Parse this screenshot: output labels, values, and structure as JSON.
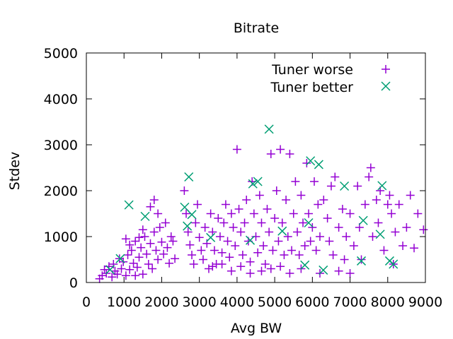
{
  "chart_data": {
    "type": "scatter",
    "title": "Bitrate",
    "xlabel": "Avg BW",
    "ylabel": "Stdev",
    "xlim": [
      0,
      9000
    ],
    "ylim": [
      0,
      5000
    ],
    "xticks": [
      "0",
      "1000",
      "2000",
      "3000",
      "4000",
      "5000",
      "6000",
      "7000",
      "8000",
      "9000"
    ],
    "yticks": [
      "0",
      "1000",
      "2000",
      "3000",
      "4000",
      "5000"
    ],
    "grid": false,
    "legend_position": "top-right",
    "series": [
      {
        "name": "Tuner worse",
        "marker": "plus",
        "color": "#9400d3",
        "points": [
          [
            350,
            80
          ],
          [
            420,
            150
          ],
          [
            480,
            280
          ],
          [
            530,
            200
          ],
          [
            600,
            350
          ],
          [
            680,
            120
          ],
          [
            720,
            400
          ],
          [
            760,
            250
          ],
          [
            820,
            180
          ],
          [
            880,
            520
          ],
          [
            930,
            300
          ],
          [
            980,
            450
          ],
          [
            1050,
            150
          ],
          [
            1100,
            600
          ],
          [
            1150,
            280
          ],
          [
            1200,
            700
          ],
          [
            1250,
            420
          ],
          [
            1300,
            900
          ],
          [
            1350,
            330
          ],
          [
            1400,
            550
          ],
          [
            1450,
            760
          ],
          [
            1500,
            180
          ],
          [
            1550,
            1000
          ],
          [
            1600,
            620
          ],
          [
            1650,
            400
          ],
          [
            1700,
            850
          ],
          [
            1750,
            300
          ],
          [
            1800,
            1100
          ],
          [
            1850,
            700
          ],
          [
            1900,
            500
          ],
          [
            1950,
            1200
          ],
          [
            2000,
            880
          ],
          [
            2050,
            620
          ],
          [
            2100,
            1300
          ],
          [
            2150,
            760
          ],
          [
            2200,
            420
          ],
          [
            2250,
            1000
          ],
          [
            2300,
            900
          ],
          [
            2350,
            520
          ],
          [
            1050,
            950
          ],
          [
            1150,
            820
          ],
          [
            1300,
            150
          ],
          [
            1400,
            980
          ],
          [
            1500,
            1150
          ],
          [
            1700,
            1650
          ],
          [
            1800,
            1800
          ],
          [
            1900,
            1500
          ],
          [
            2600,
            2000
          ],
          [
            2650,
            1500
          ],
          [
            2700,
            1100
          ],
          [
            2750,
            820
          ],
          [
            2800,
            600
          ],
          [
            2850,
            400
          ],
          [
            2900,
            1300
          ],
          [
            2950,
            1700
          ],
          [
            3000,
            980
          ],
          [
            3050,
            700
          ],
          [
            3100,
            500
          ],
          [
            3150,
            1200
          ],
          [
            3200,
            850
          ],
          [
            3250,
            300
          ],
          [
            3300,
            1500
          ],
          [
            3350,
            1100
          ],
          [
            3400,
            700
          ],
          [
            3450,
            400
          ],
          [
            3500,
            1400
          ],
          [
            3550,
            1000
          ],
          [
            3600,
            650
          ],
          [
            3650,
            1300
          ],
          [
            3700,
            1700
          ],
          [
            3750,
            900
          ],
          [
            3800,
            550
          ],
          [
            3850,
            1500
          ],
          [
            3900,
            1200
          ],
          [
            3950,
            800
          ],
          [
            4000,
            2900
          ],
          [
            4050,
            1600
          ],
          [
            4100,
            1100
          ],
          [
            4150,
            600
          ],
          [
            4200,
            1300
          ],
          [
            4250,
            1800
          ],
          [
            4300,
            900
          ],
          [
            4350,
            450
          ],
          [
            4400,
            2200
          ],
          [
            4450,
            1500
          ],
          [
            4500,
            1000
          ],
          [
            4550,
            650
          ],
          [
            4600,
            1900
          ],
          [
            4650,
            1300
          ],
          [
            4700,
            800
          ],
          [
            4750,
            400
          ],
          [
            4800,
            1600
          ],
          [
            4850,
            1100
          ],
          [
            4900,
            2800
          ],
          [
            4950,
            700
          ],
          [
            5000,
            1400
          ],
          [
            5050,
            2000
          ],
          [
            5100,
            900
          ],
          [
            5150,
            2900
          ],
          [
            5200,
            1300
          ],
          [
            5250,
            600
          ],
          [
            5300,
            1800
          ],
          [
            5350,
            1000
          ],
          [
            5400,
            2800
          ],
          [
            5450,
            700
          ],
          [
            5500,
            1500
          ],
          [
            5550,
            2200
          ],
          [
            5600,
            1100
          ],
          [
            5650,
            600
          ],
          [
            5700,
            1900
          ],
          [
            5750,
            1300
          ],
          [
            5800,
            800
          ],
          [
            5850,
            2600
          ],
          [
            5900,
            1500
          ],
          [
            5950,
            900
          ],
          [
            6000,
            1200
          ],
          [
            6050,
            2200
          ],
          [
            6100,
            700
          ],
          [
            6150,
            1700
          ],
          [
            6200,
            1000
          ],
          [
            6300,
            1800
          ],
          [
            6400,
            1400
          ],
          [
            6450,
            900
          ],
          [
            6500,
            2100
          ],
          [
            6550,
            600
          ],
          [
            6600,
            2300
          ],
          [
            6700,
            1200
          ],
          [
            6800,
            1600
          ],
          [
            6850,
            500
          ],
          [
            6900,
            1000
          ],
          [
            7000,
            1500
          ],
          [
            7100,
            800
          ],
          [
            7200,
            2100
          ],
          [
            7250,
            1200
          ],
          [
            7300,
            500
          ],
          [
            7400,
            1700
          ],
          [
            7500,
            2300
          ],
          [
            7550,
            2500
          ],
          [
            7600,
            1000
          ],
          [
            7700,
            1800
          ],
          [
            7750,
            1300
          ],
          [
            7800,
            2000
          ],
          [
            7900,
            700
          ],
          [
            8000,
            1700
          ],
          [
            8050,
            1900
          ],
          [
            8100,
            1500
          ],
          [
            8150,
            400
          ],
          [
            8200,
            1100
          ],
          [
            8300,
            1700
          ],
          [
            8400,
            800
          ],
          [
            8500,
            1200
          ],
          [
            8600,
            1900
          ],
          [
            8700,
            750
          ],
          [
            8800,
            1500
          ],
          [
            8950,
            1150
          ],
          [
            3350,
            350
          ],
          [
            3600,
            400
          ],
          [
            3850,
            250
          ],
          [
            4100,
            350
          ],
          [
            4350,
            200
          ],
          [
            4650,
            250
          ],
          [
            4900,
            300
          ],
          [
            5150,
            350
          ],
          [
            5400,
            200
          ],
          [
            5700,
            300
          ],
          [
            6200,
            200
          ],
          [
            6700,
            250
          ],
          [
            7000,
            200
          ]
        ]
      },
      {
        "name": "Tuner better",
        "marker": "x",
        "color": "#009e73",
        "points": [
          [
            630,
            280
          ],
          [
            900,
            520
          ],
          [
            1130,
            1690
          ],
          [
            1560,
            1440
          ],
          [
            2610,
            1640
          ],
          [
            2680,
            1230
          ],
          [
            2720,
            2300
          ],
          [
            2800,
            1480
          ],
          [
            3300,
            980
          ],
          [
            4350,
            920
          ],
          [
            4420,
            2150
          ],
          [
            4550,
            2200
          ],
          [
            4850,
            3340
          ],
          [
            5200,
            1120
          ],
          [
            5800,
            380
          ],
          [
            5900,
            1300
          ],
          [
            5950,
            2650
          ],
          [
            6170,
            2570
          ],
          [
            6290,
            270
          ],
          [
            6850,
            2100
          ],
          [
            7300,
            470
          ],
          [
            7350,
            1350
          ],
          [
            7800,
            1050
          ],
          [
            7850,
            2110
          ],
          [
            8050,
            470
          ],
          [
            8150,
            400
          ]
        ]
      }
    ]
  }
}
